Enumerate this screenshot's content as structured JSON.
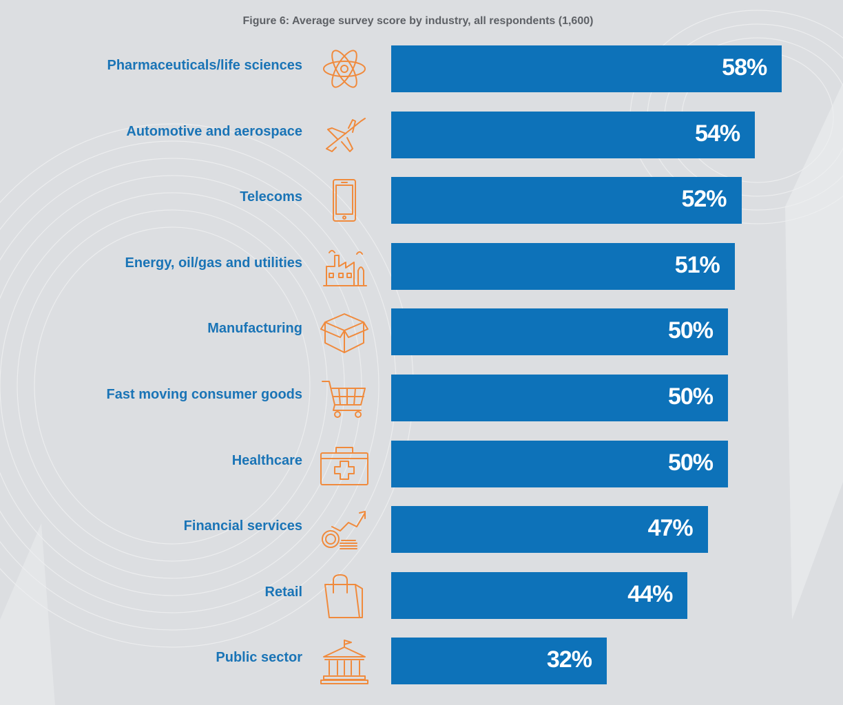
{
  "chart_data": {
    "type": "bar",
    "orientation": "horizontal",
    "title": "Figure 6: Average survey score by industry, all respondents (1,600)",
    "categories": [
      "Pharmaceuticals/life sciences",
      "Automotive and aerospace",
      "Telecoms",
      "Energy, oil/gas and utilities",
      "Manufacturing",
      "Fast moving consumer goods",
      "Healthcare",
      "Financial services",
      "Retail",
      "Public sector"
    ],
    "values": [
      58,
      54,
      52,
      51,
      50,
      50,
      50,
      47,
      44,
      32
    ],
    "value_labels": [
      "58%",
      "54%",
      "52%",
      "51%",
      "50%",
      "50%",
      "50%",
      "47%",
      "44%",
      "32%"
    ],
    "icons": [
      "atom-icon",
      "airplane-icon",
      "smartphone-icon",
      "factory-icon",
      "box-icon",
      "shopping-cart-icon",
      "medical-kit-icon",
      "coins-growth-icon",
      "shopping-bag-icon",
      "government-building-icon"
    ],
    "xlim": [
      0,
      100
    ],
    "legend": "none",
    "grid": false
  },
  "colors": {
    "bar": "#0d72b9",
    "label": "#1a74b6",
    "icon": "#f08a3c",
    "title": "#5e6166",
    "background": "#dcdee1"
  }
}
